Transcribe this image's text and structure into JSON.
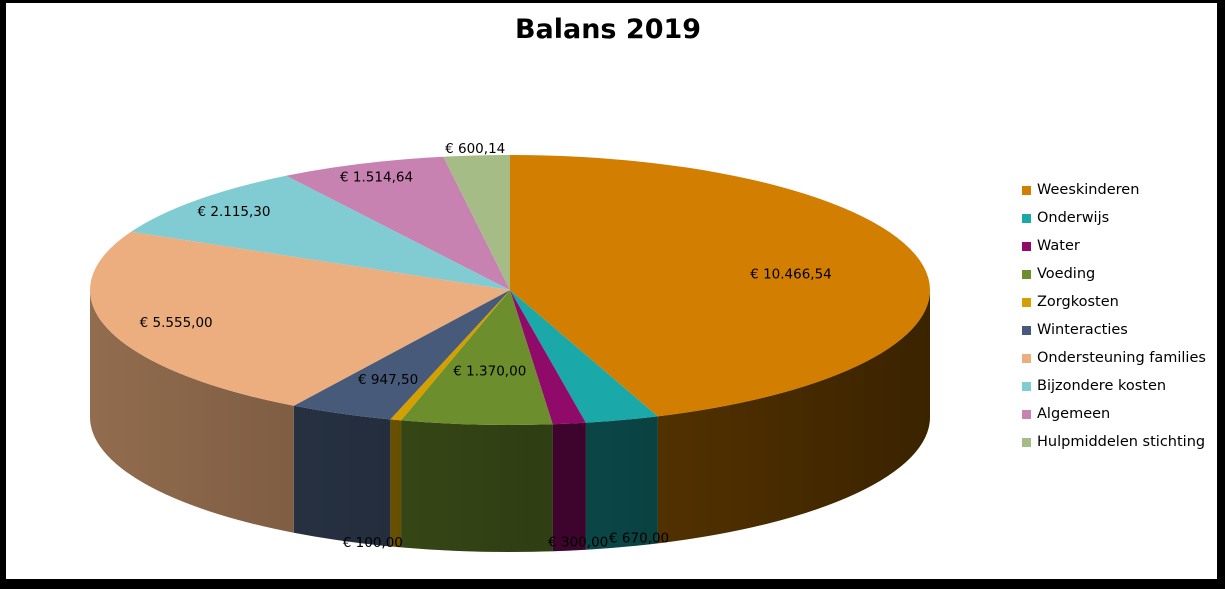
{
  "chart_data": {
    "type": "pie",
    "title": "Balans 2019",
    "categories": [
      "Weeskinderen",
      "Onderwijs",
      "Water",
      "Voeding",
      "Zorgkosten",
      "Winteracties",
      "Ondersteuning families",
      "Bijzondere kosten",
      "Algemeen",
      "Hulpmiddelen stichting"
    ],
    "values": [
      10466.54,
      670.0,
      300.0,
      1370.0,
      100.0,
      947.5,
      5555.0,
      2115.3,
      1514.64,
      600.14
    ],
    "labels": [
      "€ 10.466,54",
      "€ 670,00",
      "€ 300,00",
      "€ 1.370,00",
      "€ 100,00",
      "€ 947,50",
      "€ 5.555,00",
      "€ 2.115,30",
      "€ 1.514,64",
      "€ 600,14"
    ],
    "colors": [
      "#D27E00",
      "#1AA8A8",
      "#900A6A",
      "#6C8E2C",
      "#D4A000",
      "#475A79",
      "#ECAE7E",
      "#80CCD2",
      "#C782B2",
      "#A6BC86"
    ],
    "legend_position": "right",
    "style": "3d-tilted"
  }
}
